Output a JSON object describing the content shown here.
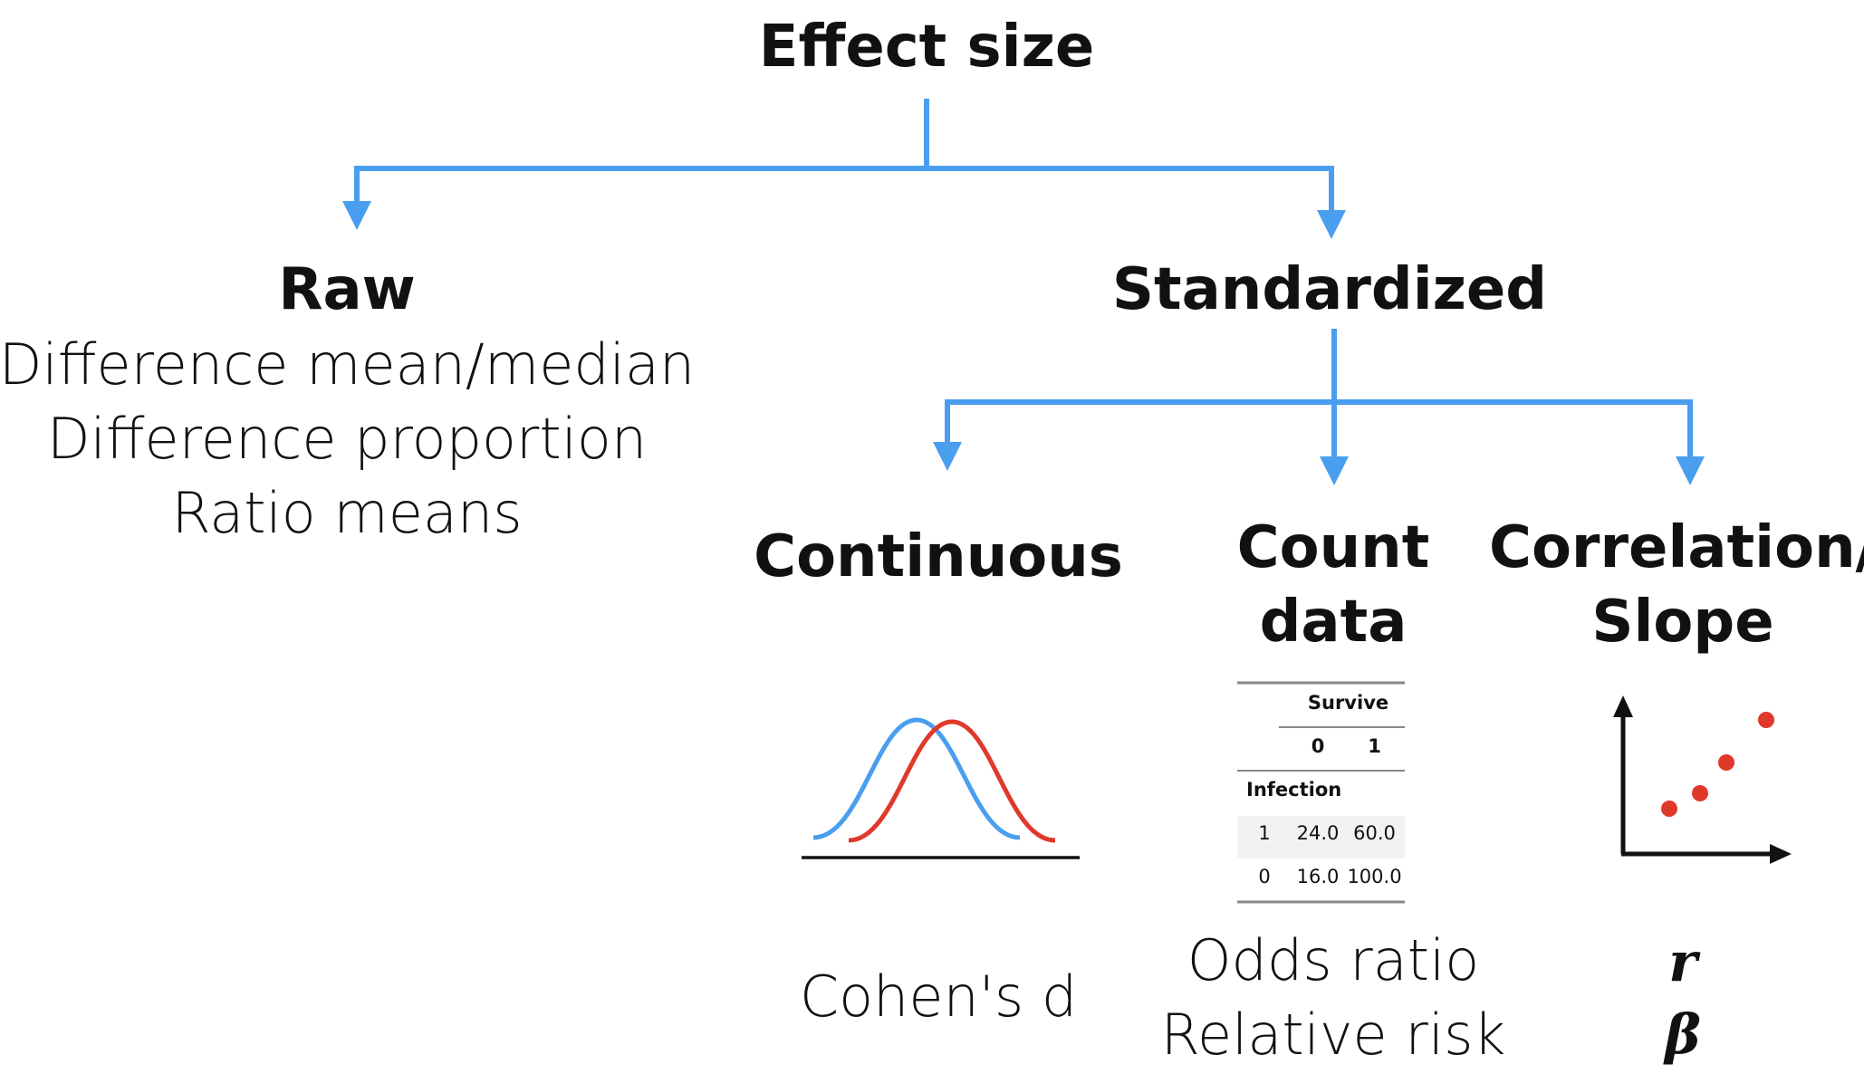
{
  "root": {
    "title": "Effect size"
  },
  "raw": {
    "title": "Raw",
    "examples": [
      "Difference mean/median",
      "Difference proportion",
      "Ratio means"
    ]
  },
  "standardized": {
    "title": "Standardized",
    "children": [
      {
        "title": "Continuous",
        "examples": [
          "Cohen's d"
        ]
      },
      {
        "title_lines": [
          "Count",
          "data"
        ],
        "examples": [
          "Odds ratio",
          "Relative risk"
        ]
      },
      {
        "title_lines": [
          "Correlation/",
          "Slope"
        ],
        "examples": [
          "r",
          "β"
        ]
      }
    ]
  },
  "count_table": {
    "col_group": "Survive",
    "col_headers": [
      "0",
      "1"
    ],
    "row_group": "Infection",
    "rows": [
      {
        "label": "1",
        "values": [
          "24.0",
          "60.0"
        ]
      },
      {
        "label": "0",
        "values": [
          "16.0",
          "100.0"
        ]
      }
    ]
  },
  "colors": {
    "arrow": "#4a9eef",
    "curve_a": "#4a9eef",
    "curve_b": "#e0392b",
    "points": "#e0392b",
    "axis": "#111111"
  }
}
